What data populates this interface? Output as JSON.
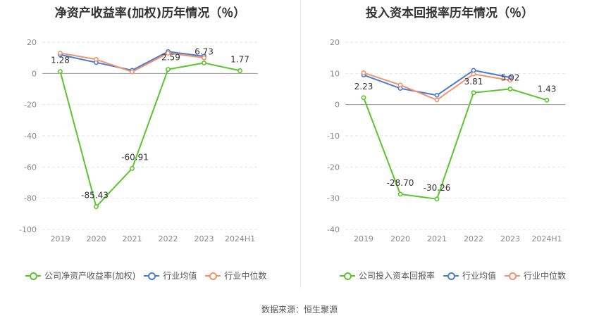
{
  "colors": {
    "company": "#5cc430",
    "industry_avg": "#4a7ad9",
    "industry_median": "#f0956b",
    "grid": "#e6e6e6",
    "tick": "#888888"
  },
  "legend": {
    "left": [
      "公司净资产收益率(加权)",
      "行业均值",
      "行业中位数"
    ],
    "right": [
      "公司投入资本回报率",
      "行业均值",
      "行业中位数"
    ]
  },
  "source": "数据来源：恒生聚源",
  "chart_data": [
    {
      "type": "line",
      "title": "净资产收益率(加权)历年情况（％）",
      "categories": [
        "2019",
        "2020",
        "2021",
        "2022",
        "2023",
        "2024H1"
      ],
      "ylim": [
        -100,
        20
      ],
      "yticks": [
        20,
        0,
        -20,
        -40,
        -60,
        -80,
        -100
      ],
      "grid": true,
      "legend_position": "bottom",
      "series": [
        {
          "name": "公司净资产收益率(加权)",
          "values": [
            1.28,
            -85.43,
            -60.91,
            2.59,
            6.73,
            1.77
          ],
          "labels": [
            "1.28",
            "-85.43",
            "-60.91",
            "2.59",
            "6.73",
            "1.77"
          ]
        },
        {
          "name": "行业均值",
          "values": [
            12,
            7,
            2,
            14,
            11,
            null
          ]
        },
        {
          "name": "行业中位数",
          "values": [
            13,
            9,
            1,
            13,
            10,
            null
          ]
        }
      ]
    },
    {
      "type": "line",
      "title": "投入资本回报率历年情况（％）",
      "categories": [
        "2019",
        "2020",
        "2021",
        "2022",
        "2023",
        "2024H1"
      ],
      "ylim": [
        -40,
        20
      ],
      "yticks": [
        20,
        10,
        0,
        -10,
        -20,
        -30,
        -40
      ],
      "grid": true,
      "legend_position": "bottom",
      "series": [
        {
          "name": "公司投入资本回报率",
          "values": [
            2.23,
            -28.7,
            -30.26,
            3.81,
            5.02,
            1.43
          ],
          "labels": [
            "2.23",
            "-28.70",
            "-30.26",
            "3.81",
            "5.02",
            "1.43"
          ]
        },
        {
          "name": "行业均值",
          "values": [
            9.5,
            5.2,
            3,
            11,
            8.7,
            null
          ]
        },
        {
          "name": "行业中位数",
          "values": [
            10.2,
            6.3,
            1.5,
            9.8,
            7.8,
            null
          ]
        }
      ]
    }
  ]
}
